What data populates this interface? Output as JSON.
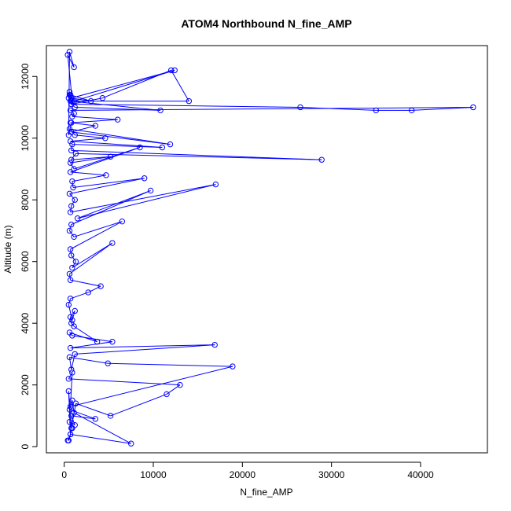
{
  "chart_data": {
    "type": "line",
    "title": "ATOM4 Northbound N_fine_AMP",
    "xlabel": "N_fine_AMP",
    "ylabel": "Altitude (m)",
    "xlim": [
      -2000,
      47500
    ],
    "ylim": [
      -200,
      13000
    ],
    "xticks": [
      0,
      10000,
      20000,
      30000,
      40000
    ],
    "yticks": [
      0,
      2000,
      4000,
      6000,
      8000,
      10000,
      12000
    ],
    "series_color": "#0000ff",
    "marker": "open-circle",
    "grid": false,
    "legend": "none",
    "series": [
      {
        "x": [
          400,
          700,
          500,
          900,
          600,
          1200,
          800,
          3500,
          600,
          900,
          1100,
          7500,
          700,
          500,
          800,
          1300,
          5200,
          11500,
          13000,
          500,
          900,
          700,
          18900,
          4900,
          600,
          800,
          1200,
          16900,
          700,
          5400,
          900,
          600,
          3700,
          1100,
          800,
          700,
          1200,
          900,
          500,
          700,
          2700,
          4100,
          700,
          600,
          5400,
          900,
          1300,
          800,
          700,
          6500,
          1100,
          600,
          800,
          9700,
          1500,
          17000,
          700,
          800,
          1200,
          600,
          9000,
          1000,
          900,
          4700,
          700,
          8500,
          1100,
          700,
          5200,
          800,
          1300,
          28900,
          800,
          900,
          11000,
          700,
          4600,
          1200,
          600,
          11900,
          800,
          3500,
          700,
          6000,
          900,
          1100,
          700,
          45900,
          39000,
          35000,
          26500,
          800,
          1200,
          10800,
          700,
          14000,
          12000,
          4300,
          800,
          600,
          1100,
          12400,
          800,
          3000,
          700,
          600,
          500,
          900,
          400,
          1100,
          600,
          500,
          800
        ],
        "y": [
          200,
          400,
          200,
          600,
          800,
          700,
          1000,
          900,
          1200,
          1500,
          1100,
          100,
          400,
          1800,
          600,
          1400,
          1000,
          1700,
          2000,
          2200,
          2400,
          1300,
          2600,
          2700,
          2900,
          2500,
          3000,
          3300,
          3200,
          3400,
          3600,
          3700,
          3400,
          3900,
          4000,
          4200,
          4400,
          4100,
          4600,
          4800,
          5000,
          5200,
          5400,
          5600,
          6600,
          5800,
          6000,
          6200,
          6400,
          7300,
          6800,
          7000,
          7200,
          8300,
          7400,
          8500,
          7600,
          7800,
          8000,
          8200,
          8700,
          8400,
          8600,
          8800,
          8900,
          9700,
          9000,
          9200,
          9400,
          9300,
          9500,
          9300,
          9600,
          9800,
          9700,
          9900,
          10000,
          10100,
          10300,
          9800,
          10200,
          10400,
          10500,
          10600,
          10700,
          10800,
          10900,
          11000,
          10900,
          10900,
          11000,
          11100,
          11000,
          10900,
          11200,
          11200,
          12200,
          11300,
          11100,
          11400,
          11200,
          12200,
          11300,
          11200,
          11400,
          11500,
          11300,
          11200,
          12700,
          12300,
          12800,
          10100,
          10500
        ]
      }
    ]
  }
}
